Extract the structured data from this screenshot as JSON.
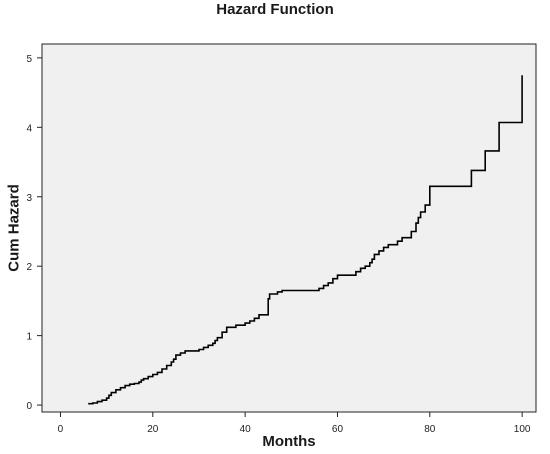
{
  "chart_data": {
    "type": "line",
    "title": "Hazard Function",
    "xlabel": "Months",
    "ylabel": "Cum Hazard",
    "xlim": [
      -4,
      103
    ],
    "ylim": [
      -0.1,
      5.2
    ],
    "xticks": [
      0,
      20,
      40,
      60,
      80,
      100
    ],
    "yticks": [
      0,
      1,
      2,
      3,
      4,
      5
    ],
    "grid": false,
    "plot_background": "#f0f0f0",
    "line_color": "#000000",
    "step": true,
    "series": [
      {
        "x": [
          6,
          7,
          8,
          9,
          10,
          10.5,
          11,
          12,
          13,
          14,
          15,
          16,
          17,
          17.5,
          18,
          19,
          20,
          21,
          22,
          23,
          24,
          24.5,
          25,
          26,
          27,
          28,
          30,
          31,
          32,
          33,
          33.5,
          34,
          35,
          36,
          38,
          40,
          41,
          42,
          43,
          45,
          45.3,
          47,
          48,
          56,
          57,
          58,
          59,
          60,
          64,
          65,
          66,
          67,
          67.5,
          68,
          69,
          70,
          71,
          72,
          73,
          74,
          76,
          77,
          77.5,
          78,
          79,
          80,
          89,
          92,
          95,
          100
        ],
        "y": [
          0.02,
          0.03,
          0.05,
          0.07,
          0.1,
          0.14,
          0.18,
          0.22,
          0.25,
          0.28,
          0.3,
          0.31,
          0.33,
          0.36,
          0.38,
          0.41,
          0.44,
          0.47,
          0.52,
          0.57,
          0.62,
          0.66,
          0.72,
          0.75,
          0.78,
          0.78,
          0.8,
          0.83,
          0.86,
          0.89,
          0.93,
          0.97,
          1.05,
          1.12,
          1.15,
          1.18,
          1.21,
          1.25,
          1.3,
          1.53,
          1.6,
          1.63,
          1.65,
          1.68,
          1.72,
          1.76,
          1.82,
          1.87,
          1.92,
          1.97,
          2.0,
          2.05,
          2.1,
          2.17,
          2.22,
          2.27,
          2.31,
          2.31,
          2.36,
          2.41,
          2.5,
          2.62,
          2.7,
          2.78,
          2.88,
          3.15,
          3.38,
          3.66,
          4.07,
          4.75
        ]
      }
    ]
  }
}
